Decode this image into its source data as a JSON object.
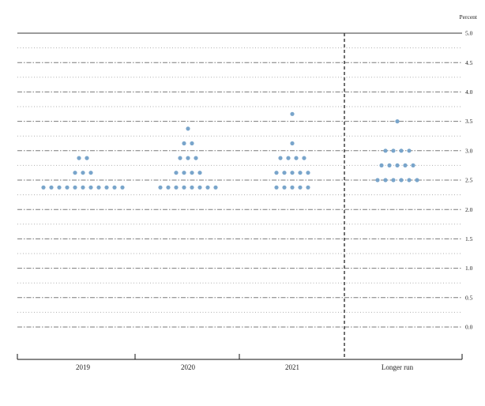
{
  "chart_data": {
    "type": "scatter",
    "subtype": "fomc-dot-plot",
    "title": "",
    "unit": "Percent",
    "xlabel": "",
    "ylabel": "Percent",
    "categories": [
      "2019",
      "2020",
      "2021",
      "Longer run"
    ],
    "ylim": [
      -0.55,
      5.0
    ],
    "gridline_interval": 0.25,
    "label_interval": 0.5,
    "grid": "dotted-horizontal",
    "legend": "none",
    "separator_before_category": "Longer run",
    "yticks": [
      {
        "label": "5.0",
        "value": 5.0
      },
      {
        "label": "4.5",
        "value": 4.5
      },
      {
        "label": "4.0",
        "value": 4.0
      },
      {
        "label": "3.5",
        "value": 3.5
      },
      {
        "label": "3.0",
        "value": 3.0
      },
      {
        "label": "2.5",
        "value": 2.5
      },
      {
        "label": "2.0",
        "value": 2.0
      },
      {
        "label": "1.5",
        "value": 1.5
      },
      {
        "label": "1.0",
        "value": 1.0
      },
      {
        "label": "0.5",
        "value": 0.5
      },
      {
        "label": "0.0",
        "value": 0.0
      }
    ],
    "series": [
      {
        "name": "2019",
        "dots": [
          {
            "rate": 2.875,
            "count": 2
          },
          {
            "rate": 2.625,
            "count": 3
          },
          {
            "rate": 2.375,
            "count": 11
          }
        ]
      },
      {
        "name": "2020",
        "dots": [
          {
            "rate": 3.375,
            "count": 1
          },
          {
            "rate": 3.125,
            "count": 2
          },
          {
            "rate": 2.875,
            "count": 3
          },
          {
            "rate": 2.625,
            "count": 4
          },
          {
            "rate": 2.375,
            "count": 8
          }
        ]
      },
      {
        "name": "2021",
        "dots": [
          {
            "rate": 3.625,
            "count": 1
          },
          {
            "rate": 3.125,
            "count": 1
          },
          {
            "rate": 2.875,
            "count": 4
          },
          {
            "rate": 2.625,
            "count": 5
          },
          {
            "rate": 2.375,
            "count": 5
          }
        ]
      },
      {
        "name": "Longer run",
        "dots": [
          {
            "rate": 3.5,
            "count": 1
          },
          {
            "rate": 3.0,
            "count": 4
          },
          {
            "rate": 2.75,
            "count": 5
          },
          {
            "rate": 2.5,
            "count": 6
          }
        ]
      }
    ]
  },
  "colors": {
    "dot": "#79A5CB",
    "gridline_major": "#7A7A7A",
    "gridline_minor": "#AFAFAF",
    "frame_top": "#3A3A3A",
    "axis": "#111111",
    "separator": "#222222",
    "text": "#222222"
  }
}
